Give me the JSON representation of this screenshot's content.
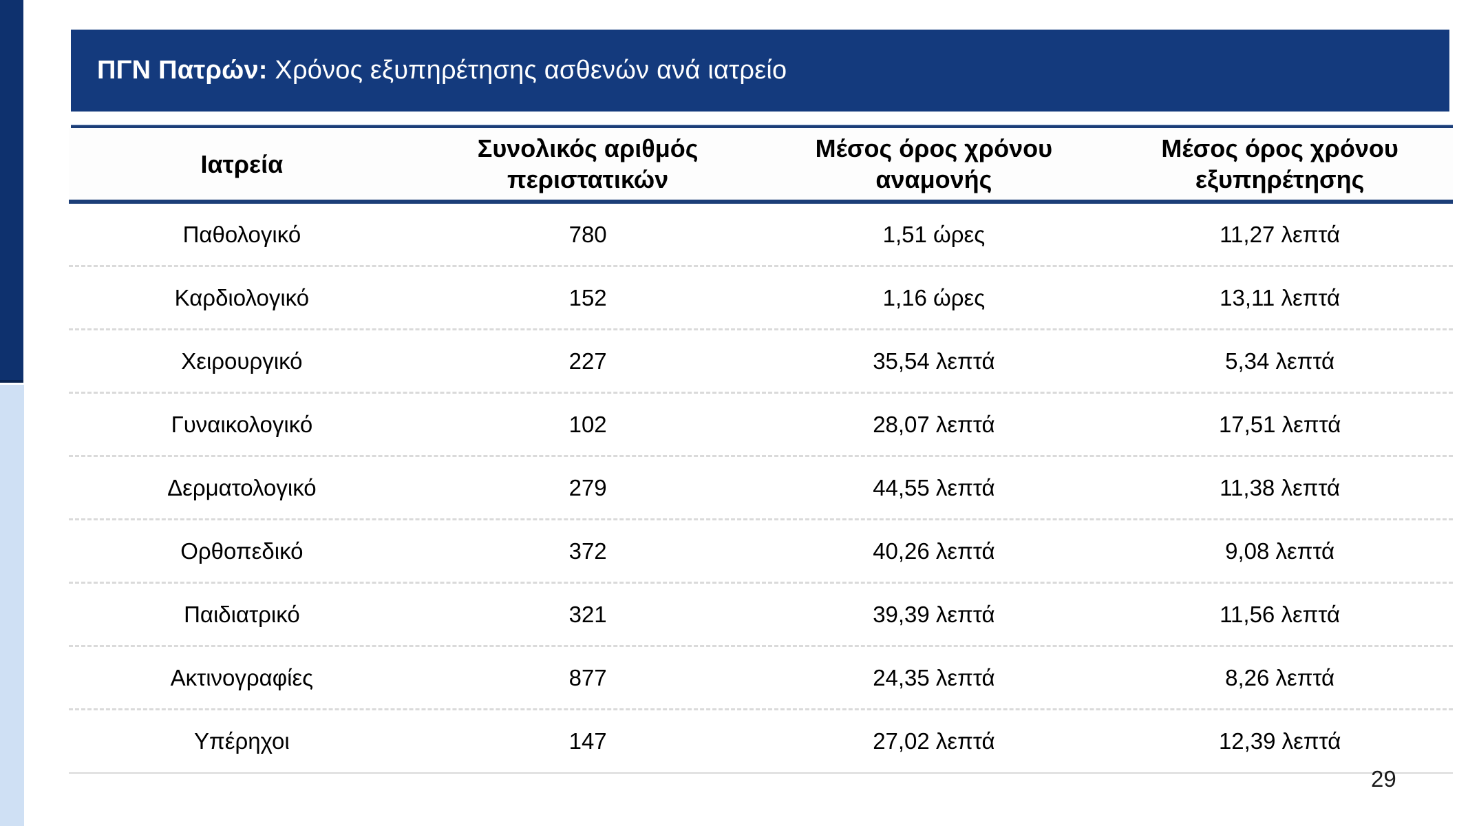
{
  "slide": {
    "title": {
      "bold": "ΠΓΝ Πατρών:",
      "regular": " Χρόνος εξυπηρέτησης ασθενών ανά ιατρείο"
    },
    "page_number": "29"
  },
  "table": {
    "columns": [
      "Ιατρεία",
      "Συνολικός αριθμός\nπεριστατικών",
      "Μέσος όρος χρόνου\nαναμονής",
      "Μέσος όρος χρόνου\nεξυπηρέτησης"
    ],
    "rows": [
      {
        "clinic": "Παθολογικό",
        "cases": "780",
        "wait": "1,51 ώρες",
        "service": "11,27 λεπτά"
      },
      {
        "clinic": "Καρδιολογικό",
        "cases": "152",
        "wait": "1,16 ώρες",
        "service": "13,11 λεπτά"
      },
      {
        "clinic": "Χειρουργικό",
        "cases": "227",
        "wait": "35,54 λεπτά",
        "service": "5,34 λεπτά"
      },
      {
        "clinic": "Γυναικολογικό",
        "cases": "102",
        "wait": "28,07 λεπτά",
        "service": "17,51 λεπτά"
      },
      {
        "clinic": "Δερματολογικό",
        "cases": "279",
        "wait": "44,55 λεπτά",
        "service": "11,38 λεπτά"
      },
      {
        "clinic": "Ορθοπεδικό",
        "cases": "372",
        "wait": "40,26 λεπτά",
        "service": "9,08 λεπτά"
      },
      {
        "clinic": "Παιδιατρικό",
        "cases": "321",
        "wait": "39,39 λεπτά",
        "service": "11,56 λεπτά"
      },
      {
        "clinic": "Ακτινογραφίες",
        "cases": "877",
        "wait": "24,35 λεπτά",
        "service": "8,26 λεπτά"
      },
      {
        "clinic": "Υπέρηχοι",
        "cases": "147",
        "wait": "27,02 λεπτά",
        "service": "12,39 λεπτά"
      }
    ]
  },
  "colors": {
    "accent_navy": "#143a7d",
    "sidebar_navy": "#0e316e",
    "sidebar_light_blue": "#cfe0f4",
    "table_rule_navy": "#1c3e78",
    "row_divider_gray": "#d9d9d9",
    "title_text": "#ffffff",
    "body_text": "#000000"
  }
}
